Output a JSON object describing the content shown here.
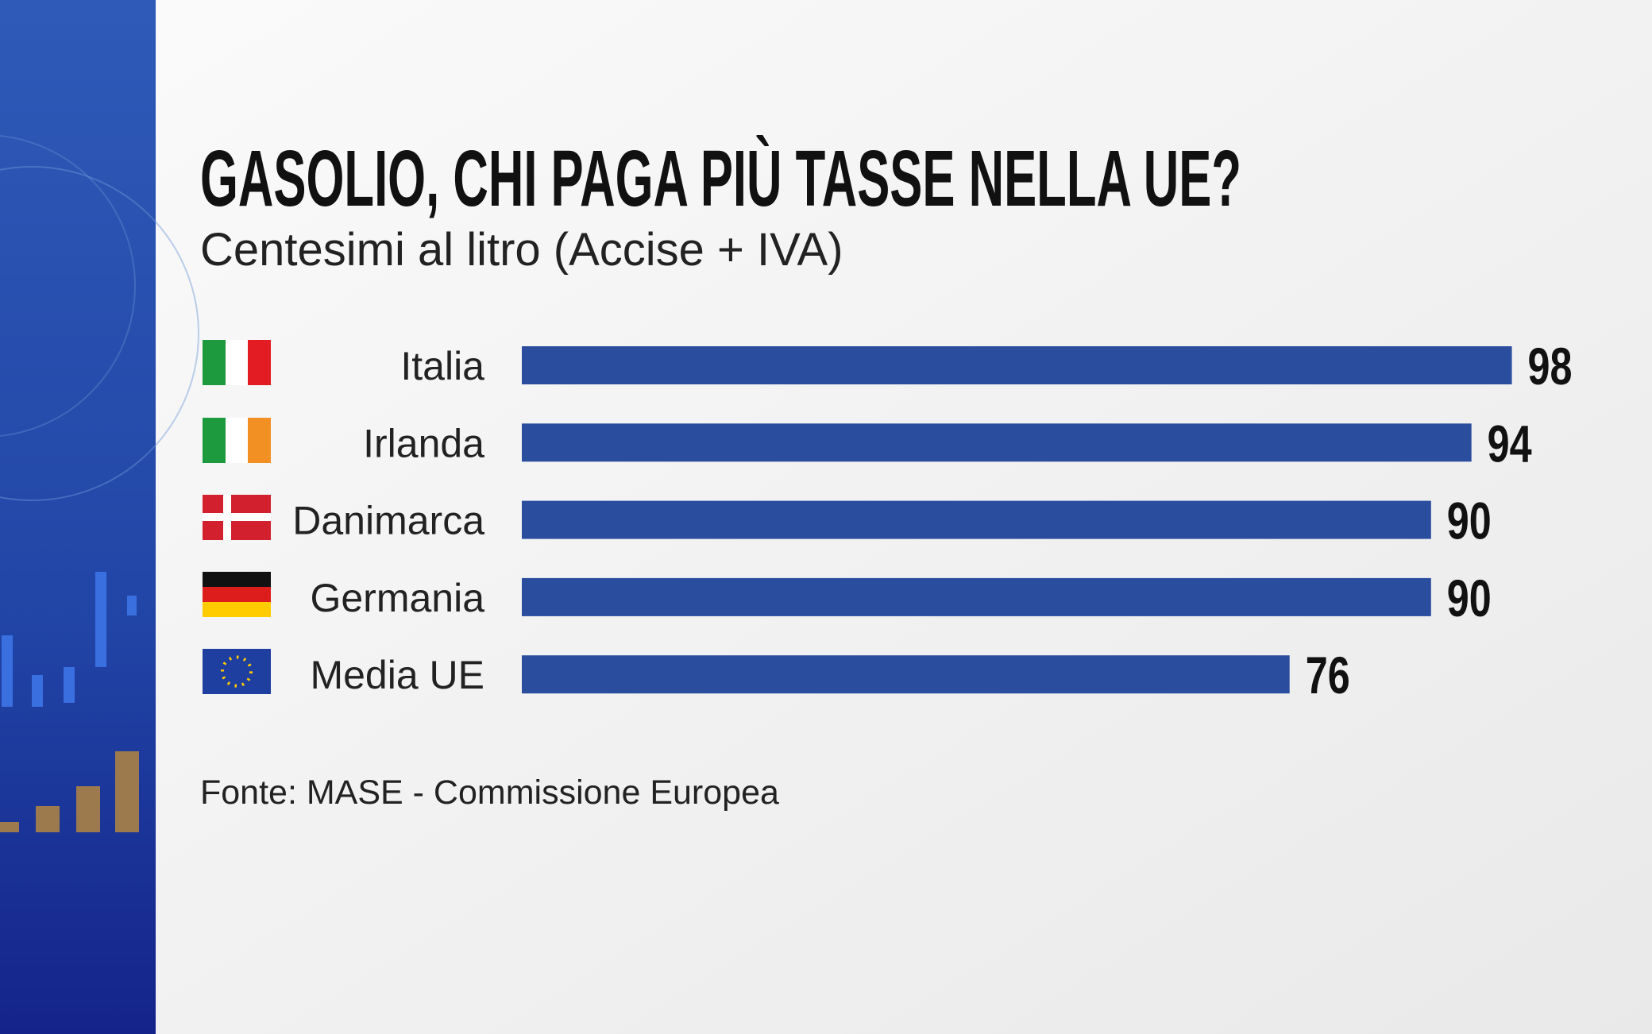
{
  "chart_data": {
    "type": "bar",
    "orientation": "horizontal",
    "title": "GASOLIO, CHI PAGA PIÙ TASSE NELLA UE?",
    "subtitle": "Centesimi al litro (Accise + IVA)",
    "categories": [
      "Italia",
      "Irlanda",
      "Danimarca",
      "Germania",
      "Media UE"
    ],
    "values": [
      98,
      94,
      90,
      90,
      76
    ],
    "color": "#2a4d9e",
    "source": "Fonte: MASE -  Commissione Europea"
  }
}
